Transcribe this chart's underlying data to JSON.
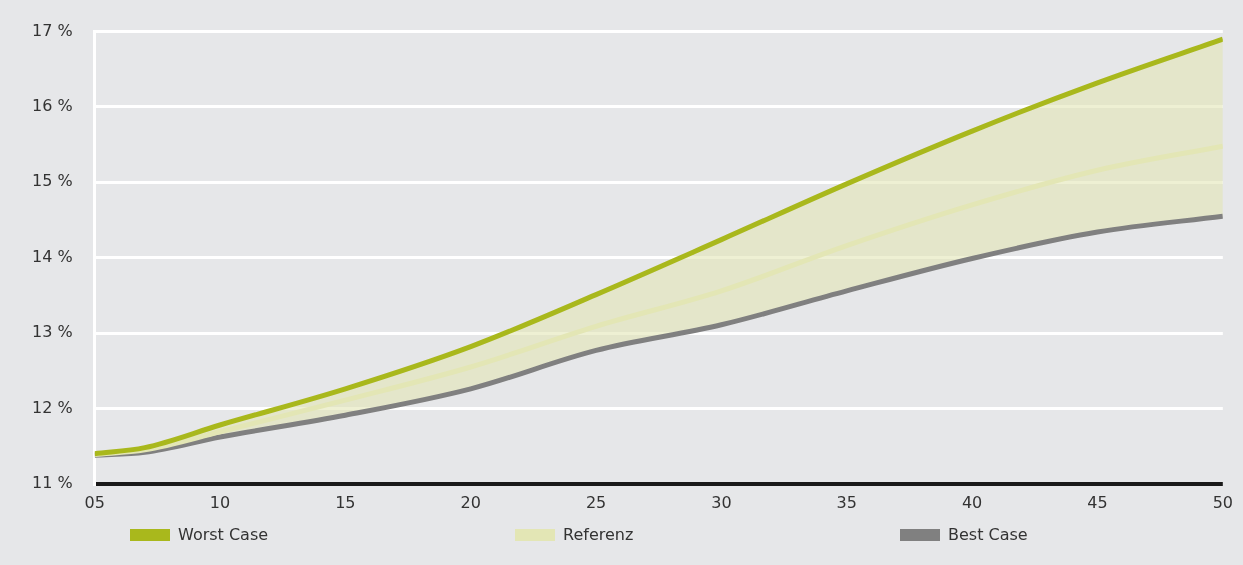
{
  "chart_data": {
    "type": "line",
    "x": [
      5,
      7,
      10,
      15,
      20,
      25,
      30,
      35,
      40,
      45,
      50
    ],
    "series": [
      {
        "name": "Worst Case",
        "color": "#a9b81c",
        "values": [
          11.4,
          11.48,
          11.78,
          12.26,
          12.82,
          13.51,
          14.24,
          14.98,
          15.68,
          16.32,
          16.9
        ]
      },
      {
        "name": "Referenz",
        "color": "#e3e6b5",
        "values": [
          11.39,
          11.45,
          11.69,
          12.11,
          12.55,
          13.09,
          13.56,
          14.16,
          14.7,
          15.16,
          15.48
        ],
        "lower": [
          11.38,
          11.42,
          11.62,
          11.91,
          12.26,
          12.77,
          13.11,
          13.56,
          13.99,
          14.34,
          14.55
        ],
        "upper": [
          11.4,
          11.48,
          11.78,
          12.26,
          12.82,
          13.51,
          14.24,
          14.98,
          15.68,
          16.32,
          16.9
        ]
      },
      {
        "name": "Best Case",
        "color": "#808080",
        "values": [
          11.38,
          11.42,
          11.62,
          11.91,
          12.26,
          12.77,
          13.11,
          13.56,
          13.99,
          14.34,
          14.55
        ]
      }
    ],
    "xlim": [
      5,
      50
    ],
    "xticks": [
      {
        "value": 5,
        "label": "05"
      },
      10,
      15,
      20,
      25,
      30,
      35,
      40,
      45,
      50
    ],
    "ylim": [
      11,
      17
    ],
    "yticks": [
      {
        "value": 11,
        "label": "11 %"
      },
      {
        "value": 12,
        "label": "12 %"
      },
      {
        "value": 13,
        "label": "13 %"
      },
      {
        "value": 14,
        "label": "14 %"
      },
      {
        "value": 15,
        "label": "15 %"
      },
      {
        "value": 16,
        "label": "16 %"
      },
      {
        "value": 17,
        "label": "17 %"
      }
    ],
    "grid": "y",
    "legend": "bottom",
    "marker": "none",
    "line_style": "solid"
  }
}
